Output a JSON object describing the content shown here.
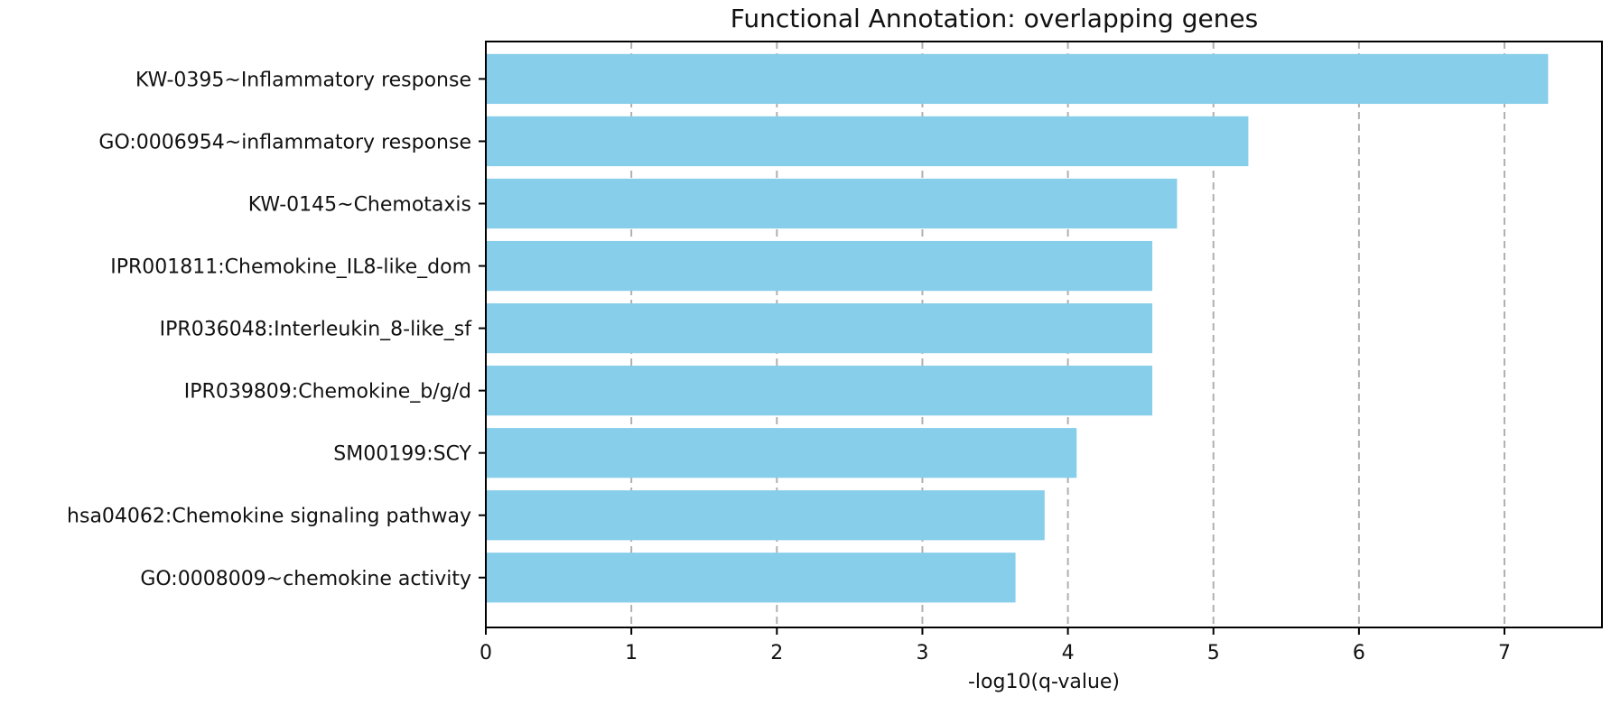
{
  "chart_data": {
    "type": "bar",
    "orientation": "horizontal",
    "title": "Functional Annotation:  overlapping genes",
    "xlabel": "-log10(q-value)",
    "ylabel": "",
    "categories": [
      "KW-0395~Inflammatory response",
      "GO:0006954~inflammatory response",
      "KW-0145~Chemotaxis",
      "IPR001811:Chemokine_IL8-like_dom",
      "IPR036048:Interleukin_8-like_sf",
      "IPR039809:Chemokine_b/g/d",
      "SM00199:SCY",
      "hsa04062:Chemokine signaling pathway",
      "GO:0008009~chemokine activity"
    ],
    "values": [
      7.3,
      5.24,
      4.75,
      4.58,
      4.58,
      4.58,
      4.06,
      3.84,
      3.64
    ],
    "xlim": [
      0,
      7.67
    ],
    "xticks": [
      "0",
      "1",
      "2",
      "3",
      "4",
      "5",
      "6",
      "7"
    ],
    "grid": "x, dashed",
    "bar_color": "#87CEEB",
    "grid_color": "#b0b0b0",
    "axis_color": "#000000"
  }
}
